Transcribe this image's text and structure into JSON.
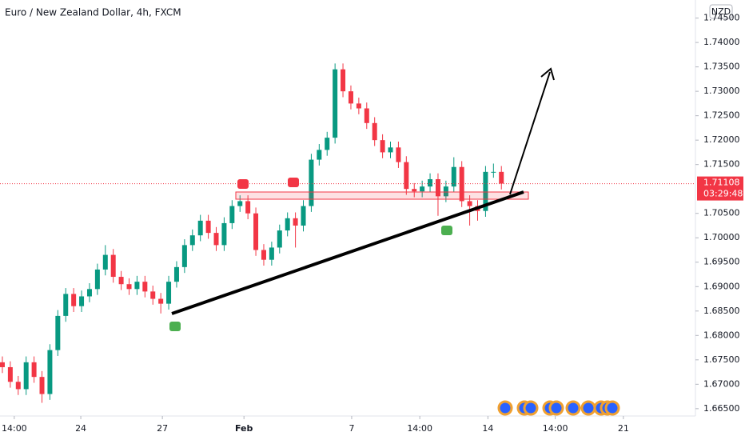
{
  "chart_data": {
    "type": "candlestick",
    "title": "Euro / New Zealand Dollar, 4h, FXCM",
    "currency": "NZD",
    "current_price": 1.71108,
    "countdown": "03:29:48",
    "up_color": "#089981",
    "down_color": "#f23645",
    "xlim": [
      -0.3,
      87.5
    ],
    "xticks": [
      {
        "value": 1.5,
        "label": "14:00"
      },
      {
        "value": 9.9,
        "label": "24"
      },
      {
        "value": 20.2,
        "label": "27"
      },
      {
        "value": 30.5,
        "label": "Feb"
      },
      {
        "value": 44.1,
        "label": "7"
      },
      {
        "value": 52.7,
        "label": "14:00"
      },
      {
        "value": 61.3,
        "label": "14"
      },
      {
        "value": 69.8,
        "label": "14:00"
      },
      {
        "value": 78.4,
        "label": "21"
      }
    ],
    "ylim": [
      1.6635,
      1.7487
    ],
    "yticks": [
      {
        "value": 1.665,
        "label": "1.66500"
      },
      {
        "value": 1.67,
        "label": "1.67000"
      },
      {
        "value": 1.675,
        "label": "1.67500"
      },
      {
        "value": 1.68,
        "label": "1.68000"
      },
      {
        "value": 1.685,
        "label": "1.68500"
      },
      {
        "value": 1.69,
        "label": "1.69000"
      },
      {
        "value": 1.695,
        "label": "1.69500"
      },
      {
        "value": 1.7,
        "label": "1.70000"
      },
      {
        "value": 1.705,
        "label": "1.70500"
      },
      {
        "value": 1.715,
        "label": "1.71500"
      },
      {
        "value": 1.72,
        "label": "1.72000"
      },
      {
        "value": 1.725,
        "label": "1.72500"
      },
      {
        "value": 1.73,
        "label": "1.73000"
      },
      {
        "value": 1.735,
        "label": "1.73500"
      },
      {
        "value": 1.74,
        "label": "1.74000"
      },
      {
        "value": 1.745,
        "label": "1.74500"
      }
    ],
    "open": [
      1.6745,
      1.6735,
      1.6705,
      1.669,
      1.6745,
      1.6715,
      1.668,
      1.677,
      1.684,
      1.6885,
      1.686,
      1.688,
      1.6895,
      1.6935,
      1.6965,
      1.692,
      1.6905,
      1.6895,
      1.691,
      1.689,
      1.6875,
      1.6865,
      1.691,
      1.694,
      1.6985,
      1.7005,
      1.7035,
      1.701,
      1.6985,
      1.703,
      1.7065,
      1.7075,
      1.705,
      1.6975,
      1.6955,
      1.698,
      1.7015,
      1.704,
      1.7025,
      1.7065,
      1.716,
      1.718,
      1.7205,
      1.7345,
      1.73,
      1.7275,
      1.7265,
      1.7235,
      1.72,
      1.7175,
      1.7185,
      1.7155,
      1.71,
      1.7095,
      1.7105,
      1.712,
      1.7085,
      1.7105,
      1.7145,
      1.7075,
      1.7065,
      1.7055,
      1.7135,
      1.7135
    ],
    "high": [
      1.6757,
      1.6747,
      1.6717,
      1.6757,
      1.6757,
      1.6727,
      1.6782,
      1.6852,
      1.6897,
      1.6897,
      1.6892,
      1.6907,
      1.6947,
      1.6985,
      1.6977,
      1.6932,
      1.6917,
      1.6922,
      1.6922,
      1.6902,
      1.6887,
      1.6922,
      1.6952,
      1.6997,
      1.7017,
      1.7047,
      1.7047,
      1.7022,
      1.7042,
      1.7077,
      1.7087,
      1.7087,
      1.7062,
      1.6987,
      1.6992,
      1.7027,
      1.7052,
      1.7052,
      1.7077,
      1.7172,
      1.7192,
      1.7217,
      1.7357,
      1.7357,
      1.7312,
      1.7287,
      1.7277,
      1.7247,
      1.7212,
      1.7197,
      1.7197,
      1.7167,
      1.7112,
      1.7117,
      1.7132,
      1.7132,
      1.7117,
      1.7165,
      1.7157,
      1.7087,
      1.7077,
      1.7147,
      1.7152,
      1.7147
    ],
    "low": [
      1.6723,
      1.6693,
      1.6678,
      1.6678,
      1.6703,
      1.6662,
      1.6668,
      1.6758,
      1.6828,
      1.6848,
      1.6848,
      1.6868,
      1.6883,
      1.6923,
      1.6908,
      1.6893,
      1.6883,
      1.6883,
      1.6878,
      1.6863,
      1.6845,
      1.6853,
      1.6898,
      1.6928,
      1.6973,
      1.6993,
      1.6998,
      1.6973,
      1.6973,
      1.7018,
      1.7053,
      1.7038,
      1.6963,
      1.6943,
      1.6943,
      1.6968,
      1.7003,
      1.698,
      1.7013,
      1.7053,
      1.7148,
      1.7168,
      1.7193,
      1.7288,
      1.7263,
      1.7253,
      1.7223,
      1.7188,
      1.7163,
      1.7163,
      1.7143,
      1.7088,
      1.7083,
      1.7083,
      1.7093,
      1.7045,
      1.7073,
      1.7093,
      1.7063,
      1.7025,
      1.7035,
      1.7043,
      1.7123,
      1.7099
    ],
    "close": [
      1.6735,
      1.6705,
      1.669,
      1.6745,
      1.6715,
      1.668,
      1.677,
      1.684,
      1.6885,
      1.686,
      1.688,
      1.6895,
      1.6935,
      1.6965,
      1.692,
      1.6905,
      1.6895,
      1.691,
      1.689,
      1.6875,
      1.6865,
      1.691,
      1.694,
      1.6985,
      1.7005,
      1.7035,
      1.701,
      1.6985,
      1.703,
      1.7065,
      1.7075,
      1.705,
      1.6975,
      1.6955,
      1.698,
      1.7015,
      1.704,
      1.7025,
      1.7065,
      1.716,
      1.718,
      1.7205,
      1.7345,
      1.73,
      1.7275,
      1.7265,
      1.7235,
      1.72,
      1.7175,
      1.7185,
      1.7155,
      1.71,
      1.7095,
      1.7105,
      1.712,
      1.7085,
      1.7105,
      1.7145,
      1.7075,
      1.7065,
      1.7055,
      1.7135,
      1.7135,
      1.7111
    ]
  }
}
